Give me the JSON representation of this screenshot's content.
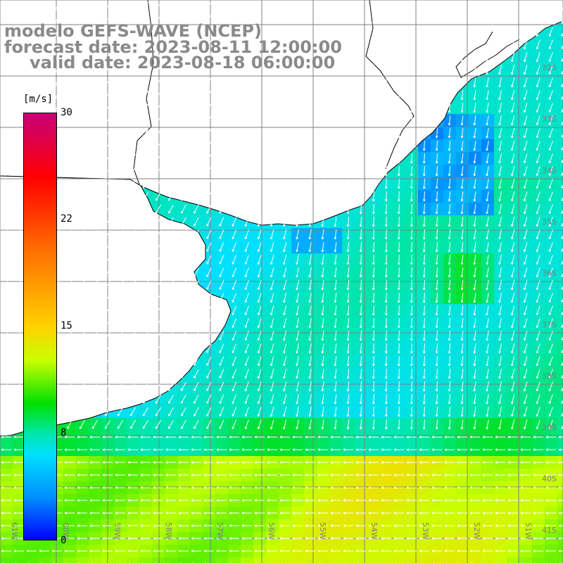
{
  "title": {
    "line1": "modelo GEFS-WAVE (NCEP)",
    "line2": "forecast date: 2023-08-11 12:00:00",
    "line3": "valid date: 2023-08-18 06:00:00"
  },
  "colorbar": {
    "unit": "[m/s]",
    "ticks": [
      "30",
      "22",
      "15",
      "8",
      "0"
    ],
    "tick_values": [
      30,
      22,
      15,
      8,
      0
    ],
    "range": [
      0,
      30
    ],
    "colors": [
      "#0000ff",
      "#0090ff",
      "#00e0ff",
      "#00e6a8",
      "#00e000",
      "#c8ff00",
      "#ffd200",
      "#ff6e00",
      "#ff0000",
      "#c8007a"
    ]
  },
  "lat_labels": [
    "32S",
    "33S",
    "34S",
    "35S",
    "36S",
    "37S",
    "38S",
    "39S",
    "40S",
    "41S"
  ],
  "lon_labels": [
    "61W",
    "60W",
    "59W",
    "58W",
    "57W",
    "56W",
    "55W",
    "54W",
    "53W",
    "52W",
    "51W"
  ],
  "map": {
    "land_color": "#ffffff",
    "coast_color": "#000000",
    "grid_color": "#808080",
    "arrow_color": "#ffffff",
    "variable": "wind speed"
  }
}
